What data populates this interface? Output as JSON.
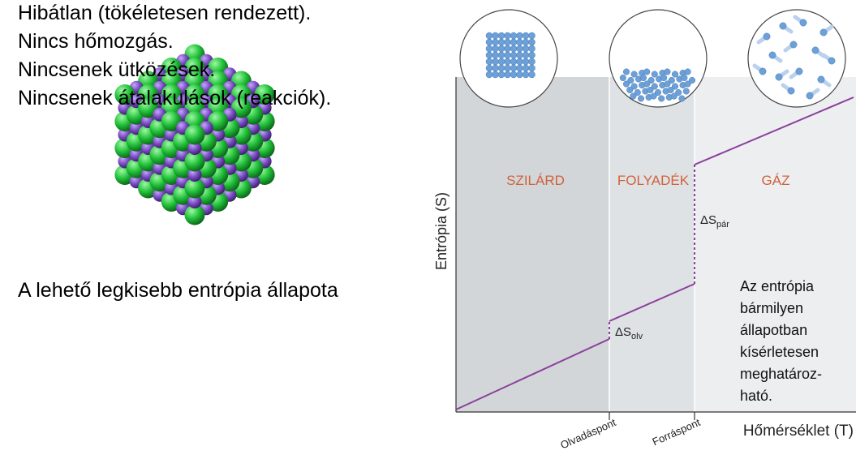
{
  "left_panel": {
    "image_label": "crystal-lattice",
    "heading": "A lehető legkisebb entrópia állapota",
    "facts": [
      "Hibátlan (tökéletesen rendezett).",
      "Nincs hőmozgás.",
      "Nincsenek ütközések.",
      "Nincsenek átalakulások (reakciók)."
    ]
  },
  "diagram": {
    "y_axis_label": "Entrópia (S)",
    "x_axis_label": "Hőmérséklet (T)",
    "phases": [
      "SZILÁRD",
      "FOLYADÉK",
      "GÁZ"
    ],
    "x_ticks": [
      "Olvadáspont",
      "Forráspont"
    ],
    "delta_melt": {
      "symbol": "ΔS",
      "subscript": "olv"
    },
    "delta_vap": {
      "symbol": "ΔS",
      "subscript": "pár"
    },
    "note": [
      "Az entrópia",
      "bármilyen",
      "állapotban",
      "kísérletesen",
      "meghatároz-",
      "ható."
    ],
    "colors": {
      "solid_bg": "#d3d6d9",
      "liquid_bg": "#dfe2e5",
      "gas_bg": "#eceef0",
      "line": "#8b3f9c",
      "phase_label": "#d0623c",
      "particle": "#6ea0d8",
      "green_atom": "#22c23a",
      "purple_atom": "#7a4cc2"
    }
  }
}
